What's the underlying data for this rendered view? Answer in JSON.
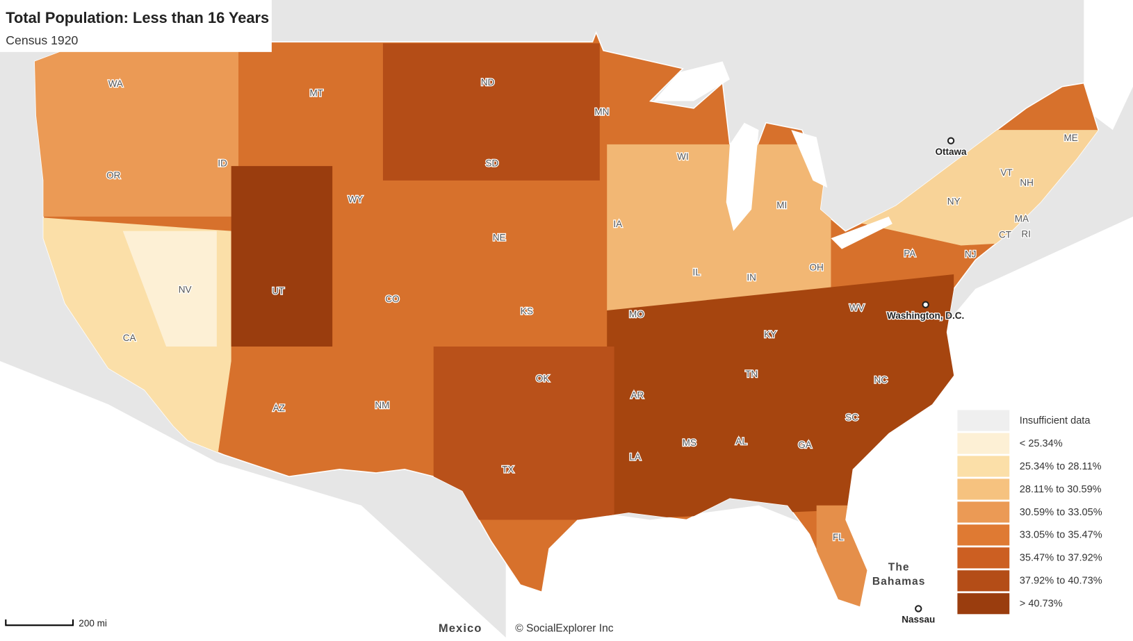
{
  "header": {
    "title": "Total Population: Less than 16 Years",
    "subtitle": "Census 1920"
  },
  "legend": {
    "items": [
      {
        "label": "Insufficient data",
        "color": "#efefef"
      },
      {
        "label": "< 25.34%",
        "color": "#fdf0d5"
      },
      {
        "label": "25.34% to 28.11%",
        "color": "#fbdfa8"
      },
      {
        "label": "28.11% to 30.59%",
        "color": "#f6c27f"
      },
      {
        "label": "30.59% to 33.05%",
        "color": "#eb9a55"
      },
      {
        "label": "33.05% to 35.47%",
        "color": "#df7a33"
      },
      {
        "label": "35.47% to 37.92%",
        "color": "#cc5f22"
      },
      {
        "label": "37.92% to 40.73%",
        "color": "#b44d17"
      },
      {
        "label": "> 40.73%",
        "color": "#9a3d0e"
      }
    ]
  },
  "states": [
    "WA",
    "MT",
    "ND",
    "MN",
    "OR",
    "ID",
    "WY",
    "SD",
    "WI",
    "MI",
    "ME",
    "VT",
    "NH",
    "NY",
    "MA",
    "CT",
    "RI",
    "NV",
    "UT",
    "CO",
    "NE",
    "IA",
    "IL",
    "IN",
    "OH",
    "PA",
    "NJ",
    "CA",
    "KS",
    "MO",
    "KY",
    "WV",
    "AZ",
    "NM",
    "OK",
    "AR",
    "TN",
    "NC",
    "SC",
    "MS",
    "AL",
    "GA",
    "LA",
    "TX",
    "FL"
  ],
  "cities": [
    "Ottawa",
    "Washington, D.C.",
    "Nassau"
  ],
  "places": {
    "mexico": "Mexico",
    "bahamas": [
      "The",
      "Bahamas"
    ]
  },
  "scale": "200 mi",
  "credit": "© SocialExplorer Inc"
}
